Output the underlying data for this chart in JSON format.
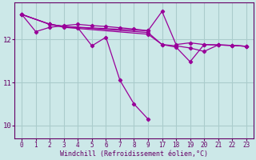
{
  "bg_color": "#cce8e8",
  "line_color": "#990099",
  "grid_color": "#aacccc",
  "xlabel": "Windchill (Refroidissement éolien,°C)",
  "xlabel_color": "#660066",
  "tick_color": "#660066",
  "ylim": [
    9.7,
    12.85
  ],
  "yticks": [
    10,
    11,
    12
  ],
  "xtick_labels": [
    "0",
    "1",
    "2",
    "3",
    "4",
    "5",
    "6",
    "7",
    "8",
    "9",
    "17",
    "18",
    "19",
    "20",
    "21",
    "22",
    "23"
  ],
  "series": [
    {
      "xi": [
        0,
        1,
        2,
        3,
        4,
        5,
        6,
        7,
        8,
        9
      ],
      "y": [
        12.58,
        12.18,
        12.28,
        12.32,
        12.35,
        12.32,
        12.3,
        12.27,
        12.24,
        12.2
      ]
    },
    {
      "xi": [
        0,
        2,
        3,
        4,
        5,
        6,
        7,
        8,
        9
      ],
      "y": [
        12.58,
        12.35,
        12.3,
        12.27,
        11.85,
        12.05,
        11.05,
        10.5,
        10.15
      ]
    },
    {
      "xi": [
        2,
        3,
        9,
        10,
        11,
        12,
        13,
        14,
        15,
        16
      ],
      "y": [
        12.35,
        12.3,
        12.2,
        12.65,
        11.88,
        11.92,
        11.88,
        11.87,
        11.86,
        11.84
      ]
    },
    {
      "xi": [
        0,
        2,
        3,
        9,
        10,
        11,
        12,
        13,
        14,
        15,
        16
      ],
      "y": [
        12.58,
        12.35,
        12.3,
        12.16,
        11.88,
        11.85,
        11.8,
        11.72,
        11.87,
        11.86,
        11.84
      ]
    },
    {
      "xi": [
        0,
        2,
        3,
        9,
        10,
        11,
        12,
        13,
        14,
        15,
        16
      ],
      "y": [
        12.58,
        12.35,
        12.28,
        12.12,
        11.88,
        11.82,
        11.48,
        11.88,
        11.87,
        11.86,
        11.84
      ]
    }
  ]
}
